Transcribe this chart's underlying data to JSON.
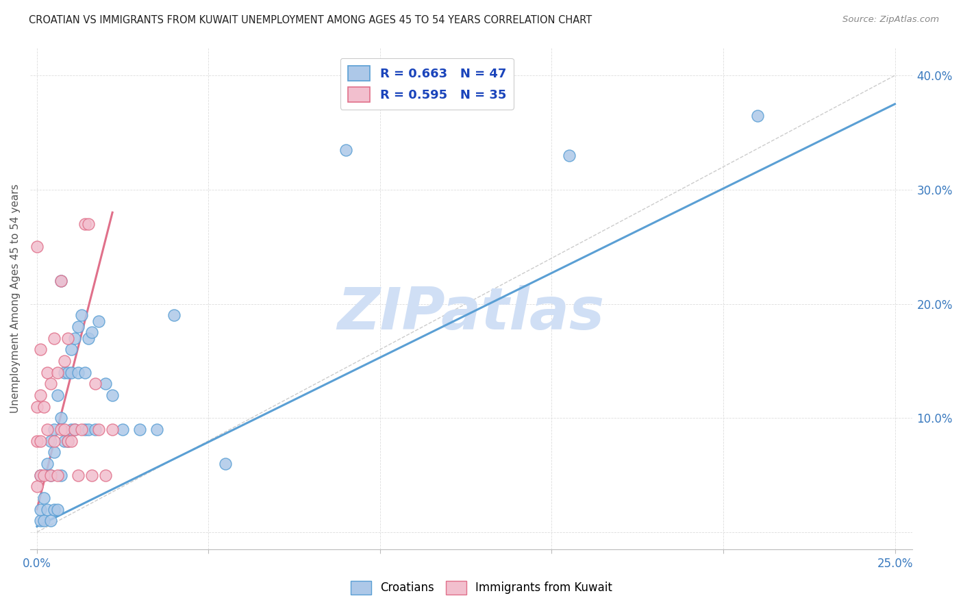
{
  "title": "CROATIAN VS IMMIGRANTS FROM KUWAIT UNEMPLOYMENT AMONG AGES 45 TO 54 YEARS CORRELATION CHART",
  "source": "Source: ZipAtlas.com",
  "ylabel": "Unemployment Among Ages 45 to 54 years",
  "xlim": [
    -0.002,
    0.255
  ],
  "ylim": [
    -0.015,
    0.425
  ],
  "x_ticks": [
    0.0,
    0.05,
    0.1,
    0.15,
    0.2,
    0.25
  ],
  "y_ticks": [
    0.0,
    0.1,
    0.2,
    0.3,
    0.4
  ],
  "x_tick_labels": [
    "0.0%",
    "",
    "",
    "",
    "",
    "25.0%"
  ],
  "y_tick_labels": [
    "",
    "10.0%",
    "20.0%",
    "30.0%",
    "40.0%"
  ],
  "croatians_fill": "#adc8e8",
  "croatians_edge": "#5a9fd4",
  "kuwait_fill": "#f2bfce",
  "kuwait_edge": "#e0708a",
  "line_blue_color": "#5a9fd4",
  "line_pink_color": "#e0708a",
  "watermark": "ZIPatlas",
  "watermark_color": "#d0dff5",
  "legend_r_color": "#1a44bb",
  "croatians_R": 0.663,
  "croatians_N": 47,
  "kuwait_R": 0.595,
  "kuwait_N": 35,
  "croatians_x": [
    0.001,
    0.001,
    0.001,
    0.002,
    0.002,
    0.003,
    0.003,
    0.004,
    0.004,
    0.004,
    0.005,
    0.005,
    0.005,
    0.006,
    0.006,
    0.007,
    0.007,
    0.007,
    0.008,
    0.008,
    0.009,
    0.009,
    0.01,
    0.01,
    0.01,
    0.011,
    0.011,
    0.012,
    0.012,
    0.013,
    0.014,
    0.014,
    0.015,
    0.015,
    0.016,
    0.017,
    0.018,
    0.02,
    0.022,
    0.025,
    0.03,
    0.035,
    0.04,
    0.055,
    0.09,
    0.155,
    0.21
  ],
  "croatians_y": [
    0.01,
    0.02,
    0.05,
    0.01,
    0.03,
    0.02,
    0.06,
    0.01,
    0.05,
    0.08,
    0.02,
    0.07,
    0.09,
    0.02,
    0.12,
    0.05,
    0.1,
    0.22,
    0.08,
    0.14,
    0.08,
    0.14,
    0.09,
    0.14,
    0.16,
    0.09,
    0.17,
    0.14,
    0.18,
    0.19,
    0.09,
    0.14,
    0.09,
    0.17,
    0.175,
    0.09,
    0.185,
    0.13,
    0.12,
    0.09,
    0.09,
    0.09,
    0.19,
    0.06,
    0.335,
    0.33,
    0.365
  ],
  "kuwait_x": [
    0.0,
    0.0,
    0.0,
    0.0,
    0.001,
    0.001,
    0.001,
    0.001,
    0.002,
    0.002,
    0.003,
    0.003,
    0.004,
    0.004,
    0.005,
    0.005,
    0.006,
    0.006,
    0.007,
    0.007,
    0.008,
    0.008,
    0.009,
    0.009,
    0.01,
    0.011,
    0.012,
    0.013,
    0.014,
    0.015,
    0.016,
    0.017,
    0.018,
    0.02,
    0.022
  ],
  "kuwait_y": [
    0.04,
    0.08,
    0.11,
    0.25,
    0.05,
    0.08,
    0.12,
    0.16,
    0.05,
    0.11,
    0.09,
    0.14,
    0.05,
    0.13,
    0.08,
    0.17,
    0.05,
    0.14,
    0.09,
    0.22,
    0.09,
    0.15,
    0.08,
    0.17,
    0.08,
    0.09,
    0.05,
    0.09,
    0.27,
    0.27,
    0.05,
    0.13,
    0.09,
    0.05,
    0.09
  ],
  "blue_line_x": [
    0.0,
    0.25
  ],
  "blue_line_y": [
    0.005,
    0.375
  ],
  "pink_line_x": [
    0.0,
    0.022
  ],
  "pink_line_y": [
    0.02,
    0.28
  ],
  "diag_line_x": [
    0.0,
    0.25
  ],
  "diag_line_y": [
    0.0,
    0.4
  ]
}
